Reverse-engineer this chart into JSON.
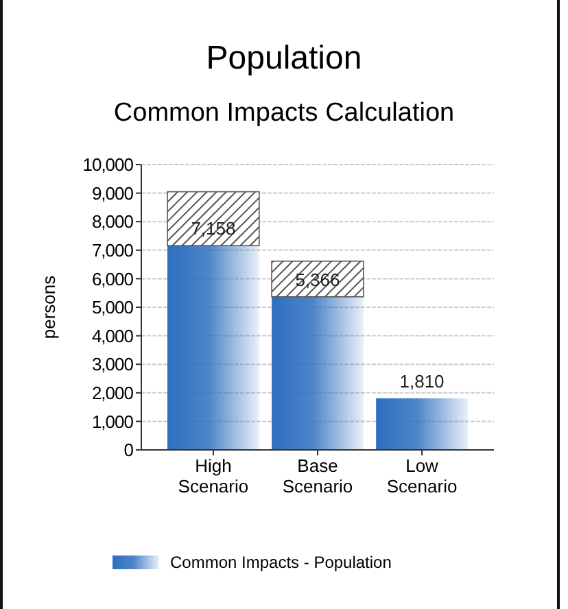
{
  "chart_data": {
    "type": "bar",
    "title": "Population",
    "subtitle": "Common Impacts Calculation",
    "ylabel": "persons",
    "categories": [
      "High\nScenario",
      "Base\nScenario",
      "Low\nScenario"
    ],
    "stacked": true,
    "series": [
      {
        "name": "Common Impacts - Population",
        "color": "#2e6fbf",
        "values": [
          7158,
          5366,
          1810
        ],
        "value_labels": [
          "7,158",
          "5,366",
          "1,810"
        ]
      },
      {
        "color": "#555555",
        "values": [
          1890,
          1250,
          null
        ]
      }
    ],
    "ylim": [
      0,
      10000
    ],
    "yticks": [
      {
        "value": 0,
        "label": "0"
      },
      {
        "value": 1000,
        "label": "1,000"
      },
      {
        "value": 2000,
        "label": "2,000"
      },
      {
        "value": 3000,
        "label": "3,000"
      },
      {
        "value": 4000,
        "label": "4,000"
      },
      {
        "value": 5000,
        "label": "5,000"
      },
      {
        "value": 6000,
        "label": "6,000"
      },
      {
        "value": 7000,
        "label": "7,000"
      },
      {
        "value": 8000,
        "label": "8,000"
      },
      {
        "value": 9000,
        "label": "9,000"
      },
      {
        "value": 10000,
        "label": "10,000"
      }
    ],
    "grid": "y",
    "legend": "bottom"
  }
}
